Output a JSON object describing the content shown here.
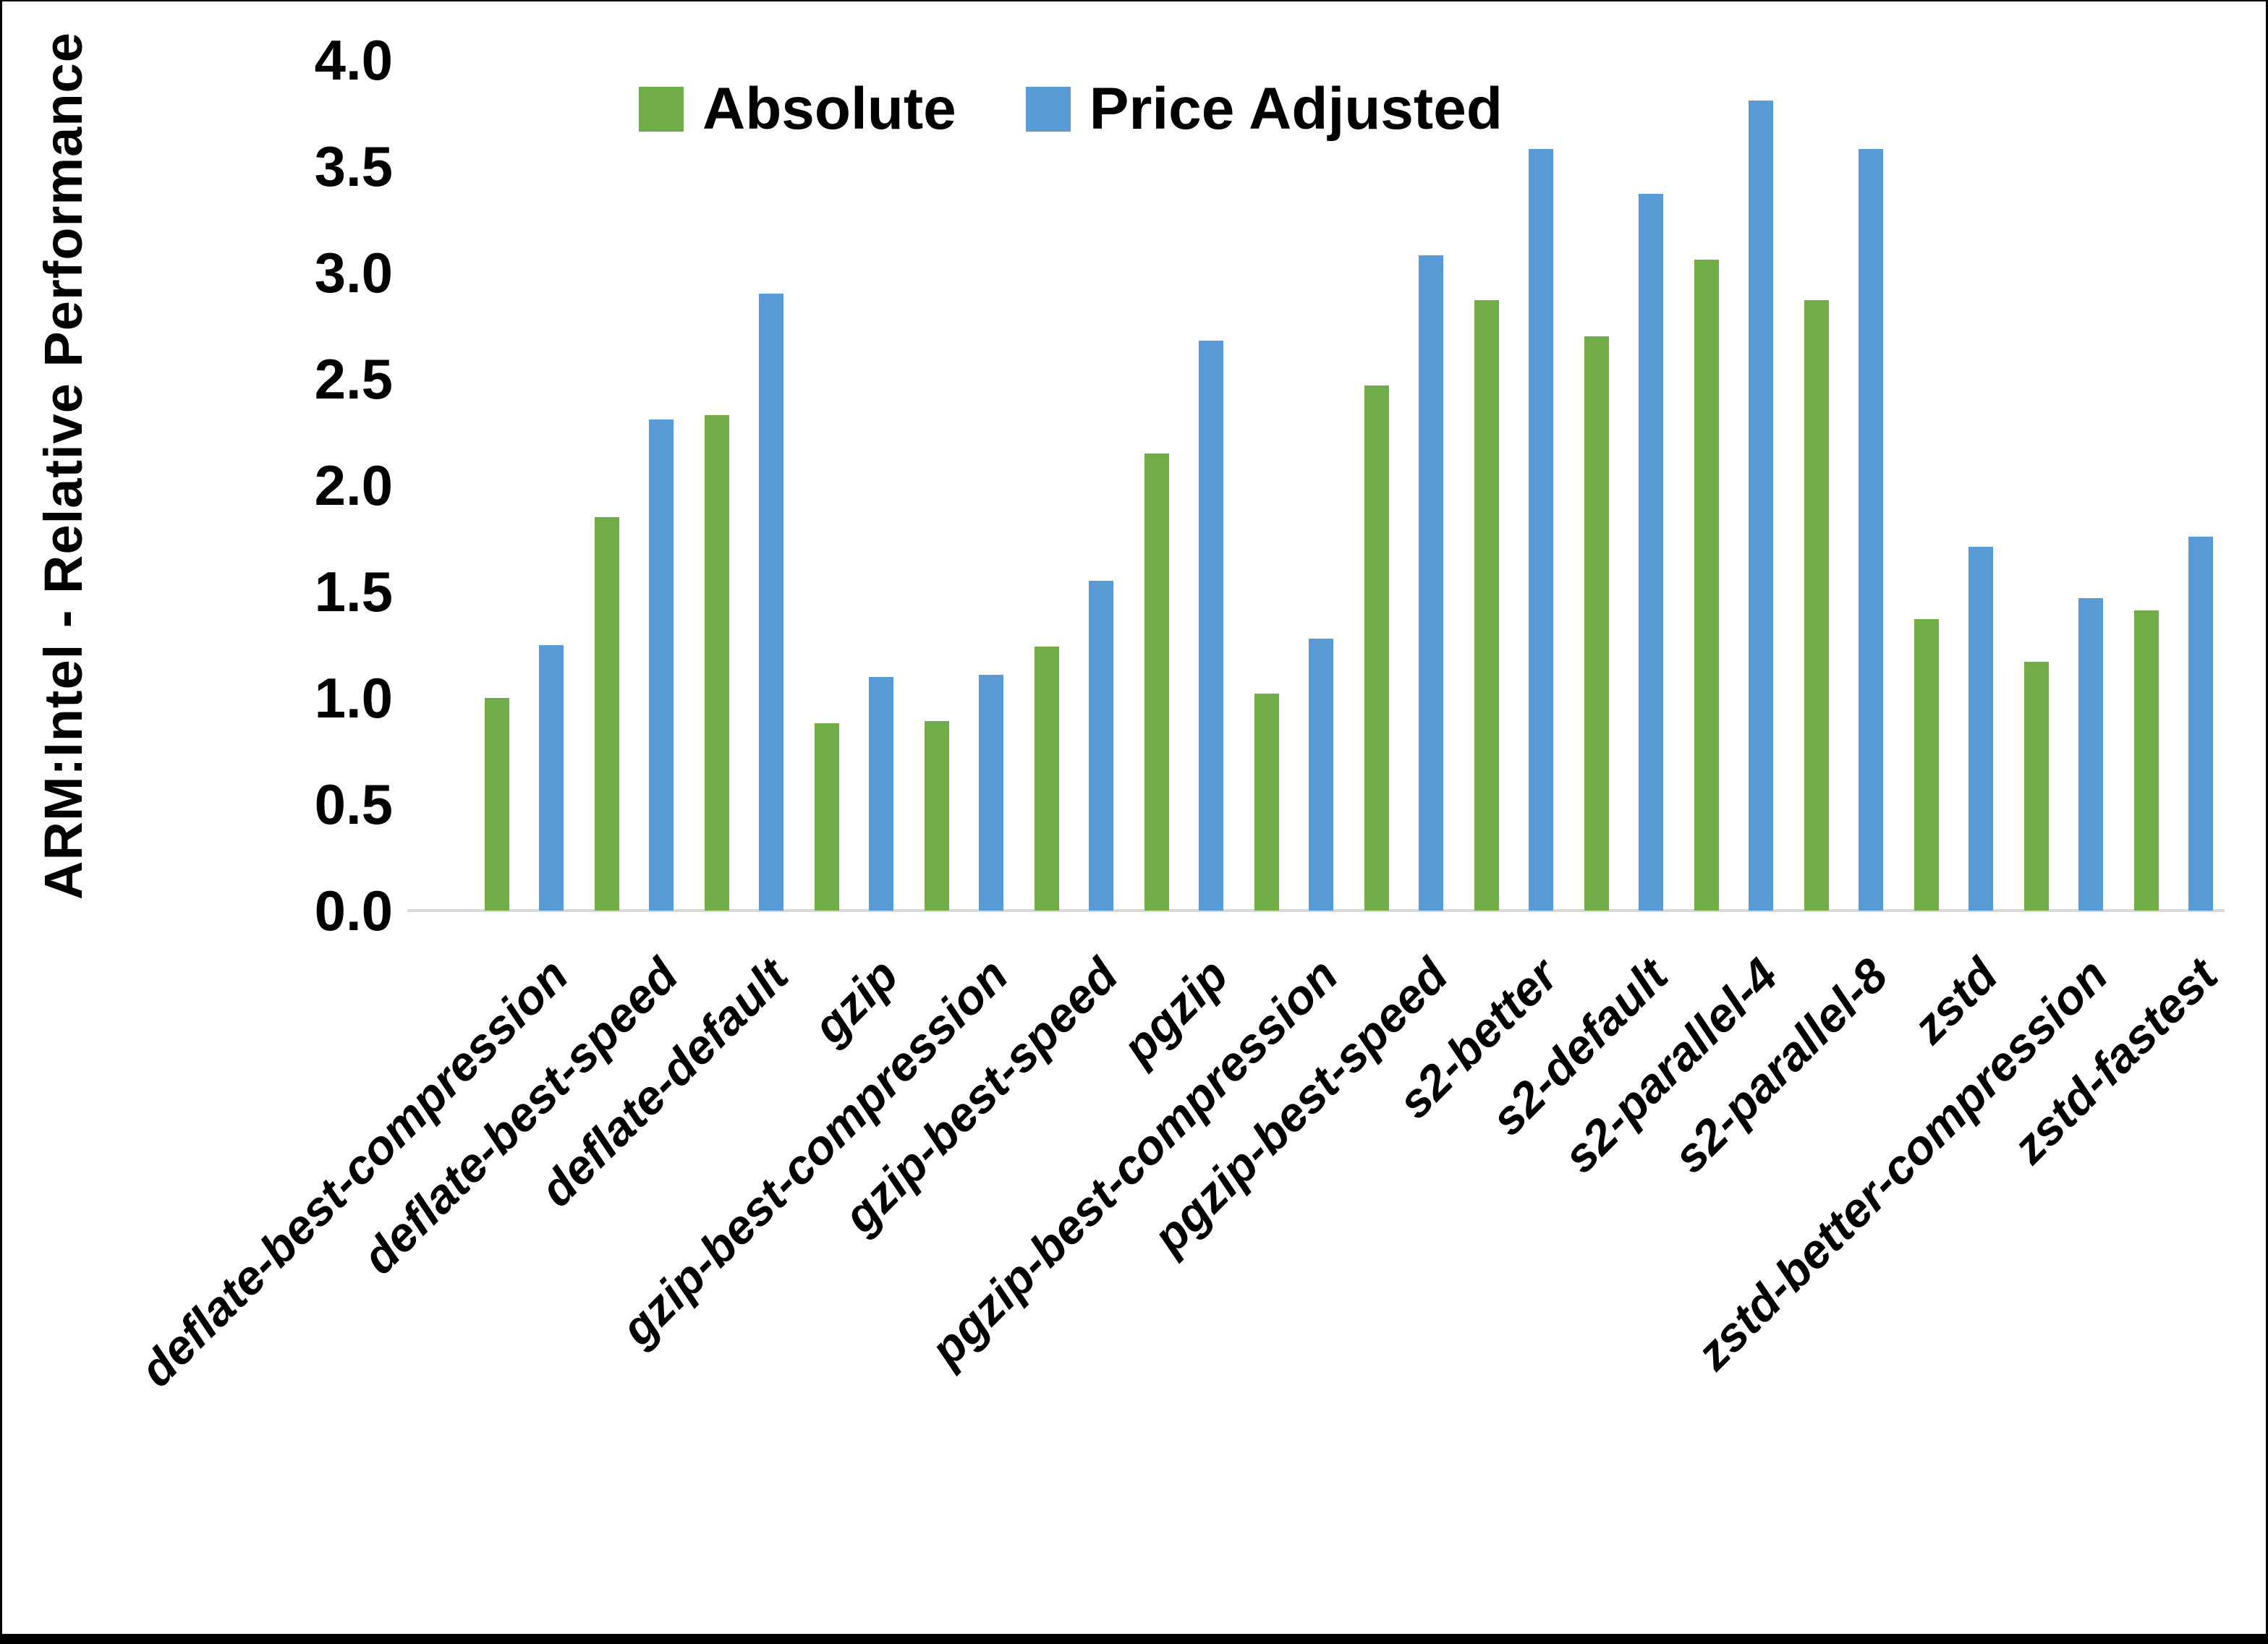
{
  "chart_data": {
    "type": "bar",
    "title": "",
    "xlabel": "",
    "ylabel": "ARM:Intel - Relative Performance",
    "ylim": [
      0.0,
      4.0
    ],
    "ytick_step": 0.5,
    "ytick_labels": [
      "0.0",
      "0.5",
      "1.0",
      "1.5",
      "2.0",
      "2.5",
      "3.0",
      "3.5",
      "4.0"
    ],
    "grid": false,
    "legend_position": "top-center",
    "axis_line_color": "#d9d9d9",
    "background_color": "#ffffff",
    "categories": [
      "deflate-best-compression",
      "deflate-best-speed",
      "deflate-default",
      "gzip",
      "gzip-best-compression",
      "gzip-best-speed",
      "pgzip",
      "pgzip-best-compression",
      "pgzip-best-speed",
      "s2-better",
      "s2-default",
      "s2-parallel-4",
      "s2-parallel-8",
      "zstd",
      "zstd-better-compression",
      "zstd-fastest"
    ],
    "series": [
      {
        "name": "Absolute",
        "color": "#70ad47",
        "values": [
          1.0,
          1.85,
          2.33,
          0.88,
          0.89,
          1.24,
          2.15,
          1.02,
          2.47,
          2.87,
          2.7,
          3.06,
          2.87,
          1.37,
          1.17,
          1.41
        ]
      },
      {
        "name": "Price Adjusted",
        "color": "#5b9bd5",
        "values": [
          1.25,
          2.31,
          2.9,
          1.1,
          1.11,
          1.55,
          2.68,
          1.28,
          3.08,
          3.58,
          3.37,
          3.81,
          3.58,
          1.71,
          1.47,
          1.76
        ]
      }
    ]
  }
}
